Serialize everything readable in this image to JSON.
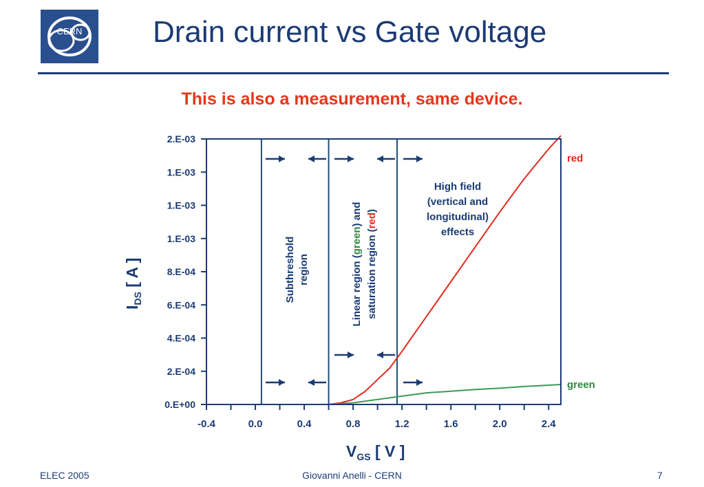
{
  "header": {
    "title": "Drain current vs Gate voltage",
    "subtitle": "This is also a measurement, same device.",
    "logo_text": "CERN"
  },
  "footer": {
    "left": "ELEC 2005",
    "center": "Giovanni Anelli - CERN",
    "page": "7"
  },
  "colors": {
    "navy": "#1a3b73",
    "red_curve": "#e02a1c",
    "green_curve": "#3a9a5a",
    "subtitle": "#e4371c"
  },
  "chart_data": {
    "type": "line",
    "xlabel_main": "V",
    "xlabel_sub": "GS",
    "xlabel_tail": " [ V ]",
    "ylabel_main": "I",
    "ylabel_sub": "DS",
    "ylabel_tail": " [ A ]",
    "xlim": [
      -0.4,
      2.5
    ],
    "ylim": [
      0,
      0.0016
    ],
    "x_ticks": [
      -0.4,
      0.0,
      0.4,
      0.8,
      1.2,
      1.6,
      2.0,
      2.4
    ],
    "x_tick_labels": [
      "-0.4",
      "0.0",
      "0.4",
      "0.8",
      "1.2",
      "1.6",
      "2.0",
      "2.4"
    ],
    "y_ticks": [
      0,
      0.0002,
      0.0004,
      0.0006,
      0.0008,
      0.001,
      0.0012,
      0.0014,
      0.0016
    ],
    "y_tick_labels": [
      "0.E+00",
      "2.E-04",
      "4.E-04",
      "6.E-04",
      "8.E-04",
      "1.E-03",
      "1.E-03",
      "1.E-03",
      "2.E-03"
    ],
    "grid": false,
    "region_boundaries": [
      0.05,
      0.6,
      1.16
    ],
    "series": [
      {
        "name": "red",
        "color": "#e02a1c",
        "x": [
          -0.4,
          0.0,
          0.4,
          0.6,
          0.7,
          0.8,
          0.9,
          1.0,
          1.1,
          1.2,
          1.4,
          1.6,
          1.8,
          2.0,
          2.2,
          2.4,
          2.5
        ],
        "y": [
          0,
          0,
          0,
          0,
          1e-05,
          3e-05,
          8e-05,
          0.00015,
          0.00022,
          0.00032,
          0.00053,
          0.00074,
          0.00095,
          0.00116,
          0.00136,
          0.00154,
          0.00162
        ]
      },
      {
        "name": "green",
        "color": "#3a9a5a",
        "x": [
          -0.4,
          0.0,
          0.4,
          0.6,
          0.8,
          1.0,
          1.2,
          1.4,
          1.6,
          1.8,
          2.0,
          2.2,
          2.4,
          2.5
        ],
        "y": [
          0,
          0,
          0,
          0,
          1e-05,
          3e-05,
          5e-05,
          7e-05,
          8e-05,
          9e-05,
          9.8e-05,
          0.000108,
          0.000116,
          0.00012
        ]
      }
    ],
    "annotations": {
      "subthreshold_line1": "Subthreshold",
      "subthreshold_line2": "region",
      "linear_line1_a": "Linear region (",
      "linear_line1_b": "green",
      "linear_line1_c": ") and",
      "linear_line2_a": "saturation region (",
      "linear_line2_b": "red",
      "linear_line2_c": ")",
      "highfield_line1": "High field",
      "highfield_line2": "(vertical and",
      "highfield_line3": "longitudinal)",
      "highfield_line4": "effects"
    }
  }
}
